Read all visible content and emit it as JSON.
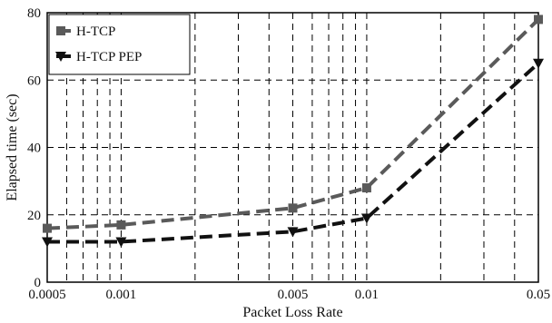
{
  "chart_data": {
    "type": "line",
    "xscale": "log",
    "x": [
      0.0005,
      0.001,
      0.005,
      0.01,
      0.05
    ],
    "x_tick_labels": [
      "0.0005",
      "0.001",
      "0.005",
      "0.01",
      "0.05"
    ],
    "y_ticks": [
      0,
      20,
      40,
      60,
      80
    ],
    "y_tick_labels": [
      "0",
      "20",
      "40",
      "60",
      "80"
    ],
    "xlim": [
      0.0005,
      0.05
    ],
    "ylim": [
      0,
      80
    ],
    "xlabel": "Packet Loss Rate",
    "ylabel": "Elapsed time (sec)",
    "grid": true,
    "legend_position": "top-left",
    "series": [
      {
        "name": "H-TCP",
        "values": [
          16,
          17,
          22,
          28,
          78
        ],
        "color": "#5a5a5a",
        "marker": "square"
      },
      {
        "name": "H-TCP PEP",
        "values": [
          12,
          12,
          15,
          19,
          65
        ],
        "color": "#111111",
        "marker": "triangle-down"
      }
    ]
  }
}
